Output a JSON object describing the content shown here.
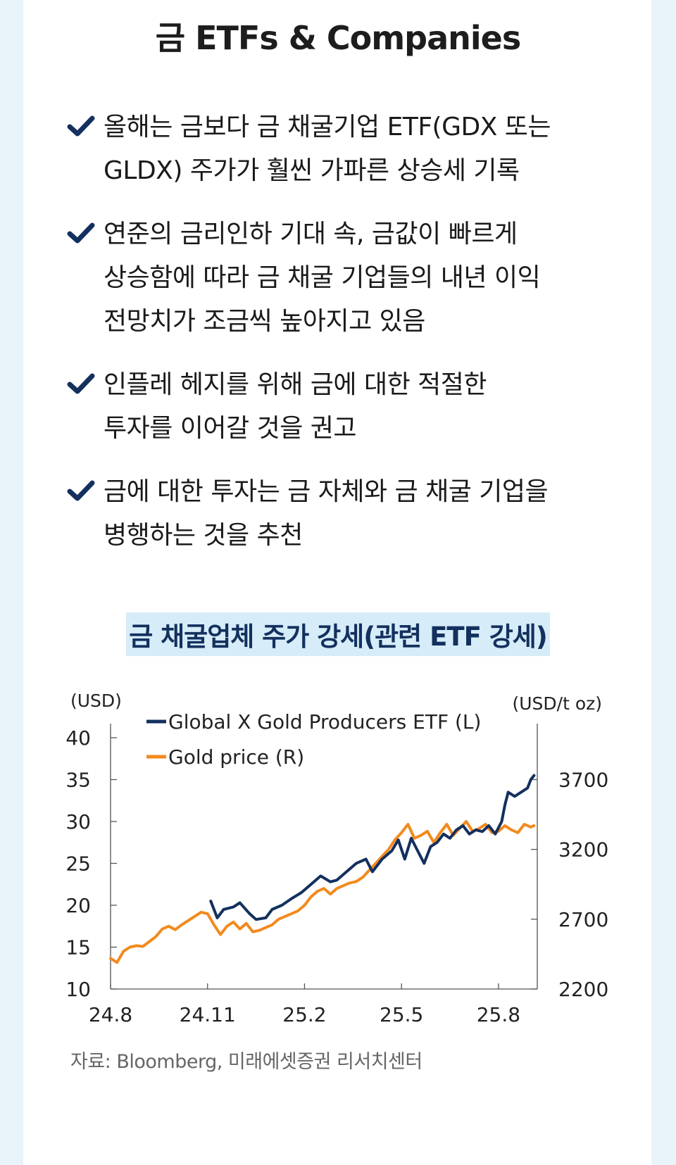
{
  "title": "금 ETFs & Companies",
  "bullets": [
    {
      "line1": "올해는 금보다 금 채굴기업 ETF(GDX 또는",
      "line2": "GLDX) 주가가 훨씬 가파른 상승세 기록",
      "line3": ""
    },
    {
      "line1": "연준의 금리인하 기대 속, 금값이 빠르게",
      "line2": "상승함에 따라 금 채굴 기업들의 내년 이익",
      "line3": "전망치가 조금씩 높아지고 있음"
    },
    {
      "line1": "인플레 헤지를 위해 금에 대한 적절한",
      "line2": "투자를 이어갈 것을 권고",
      "line3": ""
    },
    {
      "line1": "금에 대한 투자는 금 자체와 금 채굴 기업을",
      "line2": "병행하는 것을 추천",
      "line3": ""
    }
  ],
  "check_color": "#13305e",
  "source": "자료: Bloomberg, 미래에셋증권 리서치센터",
  "chart_data": {
    "type": "line",
    "title": "금 채굴업체 주가 강세(관련 ETF 강세)",
    "ylabel_left": "(USD)",
    "ylabel_right": "(USD/t oz)",
    "ylim_left": [
      10,
      40
    ],
    "ylim_right": [
      2200,
      4000
    ],
    "yticks_left": [
      "10",
      "15",
      "20",
      "25",
      "30",
      "35",
      "40"
    ],
    "yticks_right": [
      "2200",
      "2700",
      "3200",
      "3700"
    ],
    "xlim": [
      0,
      13.2
    ],
    "xticks": [
      {
        "x": 0,
        "label": "24.8"
      },
      {
        "x": 3,
        "label": "24.11"
      },
      {
        "x": 6,
        "label": "25.2"
      },
      {
        "x": 9,
        "label": "25.5"
      },
      {
        "x": 12,
        "label": "25.8"
      }
    ],
    "legend_position": "top-left",
    "series": [
      {
        "name": "Global X Gold Producers ETF (L)",
        "axis": "left",
        "color": "#13305e",
        "x": [
          3.1,
          3.3,
          3.5,
          3.8,
          4.0,
          4.3,
          4.5,
          4.8,
          5.0,
          5.3,
          5.6,
          5.9,
          6.2,
          6.5,
          6.8,
          7.0,
          7.3,
          7.6,
          7.9,
          8.1,
          8.4,
          8.7,
          8.9,
          9.1,
          9.3,
          9.5,
          9.7,
          9.9,
          10.1,
          10.3,
          10.5,
          10.7,
          10.9,
          11.1,
          11.3,
          11.5,
          11.7,
          11.9,
          12.1,
          12.2,
          12.3,
          12.5,
          12.7,
          12.9,
          13.0,
          13.1
        ],
        "y": [
          20.5,
          18.5,
          19.5,
          19.8,
          20.3,
          19.0,
          18.3,
          18.5,
          19.5,
          20.0,
          20.8,
          21.5,
          22.5,
          23.5,
          22.8,
          23.0,
          24.0,
          25.0,
          25.5,
          24.0,
          25.5,
          26.5,
          27.8,
          25.5,
          28.0,
          26.5,
          25.0,
          27.0,
          27.5,
          28.5,
          28.0,
          29.0,
          29.5,
          28.5,
          29.0,
          28.8,
          29.5,
          28.5,
          30.0,
          32.0,
          33.5,
          33.0,
          33.5,
          34.0,
          35.0,
          35.5
        ]
      },
      {
        "name": "Gold price (R)",
        "axis": "right",
        "color": "#f28a1e",
        "x": [
          0.0,
          0.2,
          0.4,
          0.6,
          0.8,
          1.0,
          1.2,
          1.4,
          1.6,
          1.8,
          2.0,
          2.2,
          2.4,
          2.6,
          2.8,
          3.0,
          3.2,
          3.4,
          3.6,
          3.8,
          4.0,
          4.2,
          4.4,
          4.6,
          4.8,
          5.0,
          5.2,
          5.4,
          5.6,
          5.8,
          6.0,
          6.2,
          6.4,
          6.6,
          6.8,
          7.0,
          7.2,
          7.4,
          7.6,
          7.8,
          8.0,
          8.2,
          8.4,
          8.6,
          8.8,
          9.0,
          9.2,
          9.4,
          9.6,
          9.8,
          10.0,
          10.2,
          10.4,
          10.6,
          10.8,
          11.0,
          11.2,
          11.4,
          11.6,
          11.8,
          12.0,
          12.2,
          12.4,
          12.6,
          12.8,
          13.0,
          13.1
        ],
        "y": [
          2420,
          2390,
          2470,
          2500,
          2510,
          2505,
          2540,
          2575,
          2630,
          2650,
          2625,
          2660,
          2690,
          2720,
          2750,
          2740,
          2660,
          2590,
          2650,
          2680,
          2630,
          2670,
          2610,
          2620,
          2640,
          2660,
          2700,
          2720,
          2740,
          2760,
          2800,
          2860,
          2900,
          2920,
          2880,
          2920,
          2940,
          2960,
          2970,
          3000,
          3050,
          3100,
          3150,
          3200,
          3270,
          3320,
          3380,
          3280,
          3300,
          3330,
          3250,
          3320,
          3380,
          3300,
          3350,
          3400,
          3330,
          3350,
          3380,
          3320,
          3330,
          3370,
          3340,
          3320,
          3380,
          3360,
          3370
        ]
      }
    ]
  }
}
